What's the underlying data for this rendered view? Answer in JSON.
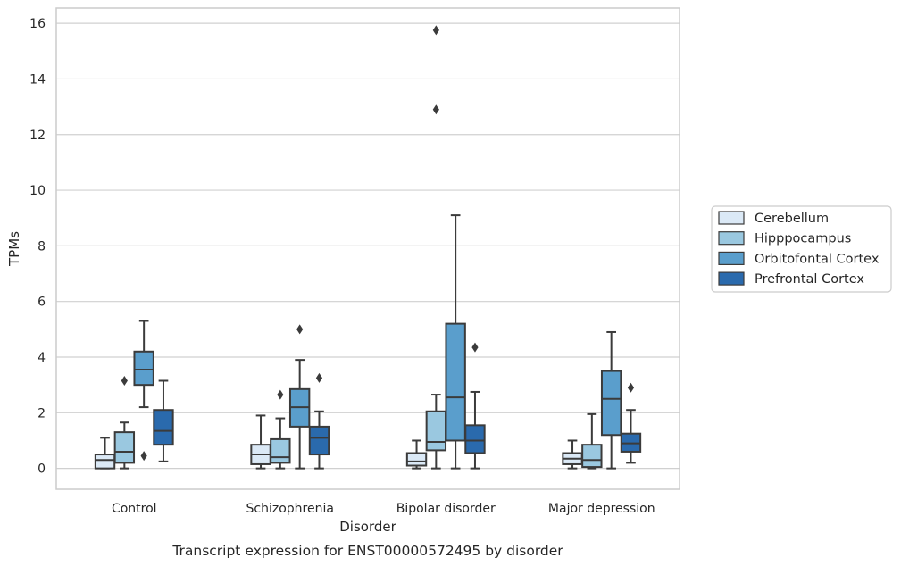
{
  "chart_data": {
    "type": "box",
    "caption": "Transcript expression for ENST00000572495 by disorder",
    "xlabel": "Disorder",
    "ylabel": "TPMs",
    "ylim": [
      -0.75,
      16.55
    ],
    "yticks": [
      0,
      2,
      4,
      6,
      8,
      10,
      12,
      14,
      16
    ],
    "grid": true,
    "legend_position": "right",
    "categories": [
      "Control",
      "Schizophrenia",
      "Bipolar disorder",
      "Major depression"
    ],
    "series": [
      {
        "name": "Cerebellum",
        "color": "#dbe9f6",
        "boxes": [
          {
            "whislo": 0,
            "q1": 0,
            "med": 0.3,
            "q3": 0.5,
            "whishi": 1.1,
            "fliers": []
          },
          {
            "whislo": 0,
            "q1": 0.15,
            "med": 0.5,
            "q3": 0.85,
            "whishi": 1.9,
            "fliers": []
          },
          {
            "whislo": 0,
            "q1": 0.1,
            "med": 0.25,
            "q3": 0.55,
            "whishi": 1.0,
            "fliers": []
          },
          {
            "whislo": 0,
            "q1": 0.15,
            "med": 0.35,
            "q3": 0.55,
            "whishi": 1.0,
            "fliers": []
          }
        ]
      },
      {
        "name": "Hipppocampus",
        "color": "#9ac8e0",
        "boxes": [
          {
            "whislo": 0,
            "q1": 0.2,
            "med": 0.6,
            "q3": 1.3,
            "whishi": 1.65,
            "fliers": [
              3.15
            ]
          },
          {
            "whislo": 0,
            "q1": 0.2,
            "med": 0.4,
            "q3": 1.05,
            "whishi": 1.8,
            "fliers": [
              2.65
            ]
          },
          {
            "whislo": 0,
            "q1": 0.65,
            "med": 0.95,
            "q3": 2.05,
            "whishi": 2.65,
            "fliers": [
              12.9,
              15.75
            ]
          },
          {
            "whislo": 0,
            "q1": 0.05,
            "med": 0.3,
            "q3": 0.85,
            "whishi": 1.95,
            "fliers": []
          }
        ]
      },
      {
        "name": "Orbitofontal Cortex",
        "color": "#5a9ecc",
        "boxes": [
          {
            "whislo": 2.2,
            "q1": 3.0,
            "med": 3.55,
            "q3": 4.2,
            "whishi": 5.3,
            "fliers": [
              0.45
            ]
          },
          {
            "whislo": 0,
            "q1": 1.5,
            "med": 2.2,
            "q3": 2.85,
            "whishi": 3.9,
            "fliers": [
              5.0
            ]
          },
          {
            "whislo": 0,
            "q1": 1.0,
            "med": 2.55,
            "q3": 5.2,
            "whishi": 9.1,
            "fliers": []
          },
          {
            "whislo": 0,
            "q1": 1.2,
            "med": 2.5,
            "q3": 3.5,
            "whishi": 4.9,
            "fliers": []
          }
        ]
      },
      {
        "name": "Prefrontal Cortex",
        "color": "#2a6aad",
        "boxes": [
          {
            "whislo": 0.25,
            "q1": 0.85,
            "med": 1.35,
            "q3": 2.1,
            "whishi": 3.15,
            "fliers": []
          },
          {
            "whislo": 0,
            "q1": 0.5,
            "med": 1.1,
            "q3": 1.5,
            "whishi": 2.05,
            "fliers": [
              3.25
            ]
          },
          {
            "whislo": 0,
            "q1": 0.55,
            "med": 1.0,
            "q3": 1.55,
            "whishi": 2.75,
            "fliers": [
              4.35
            ]
          },
          {
            "whislo": 0.2,
            "q1": 0.6,
            "med": 0.9,
            "q3": 1.25,
            "whishi": 2.1,
            "fliers": [
              2.9
            ]
          }
        ]
      }
    ]
  }
}
